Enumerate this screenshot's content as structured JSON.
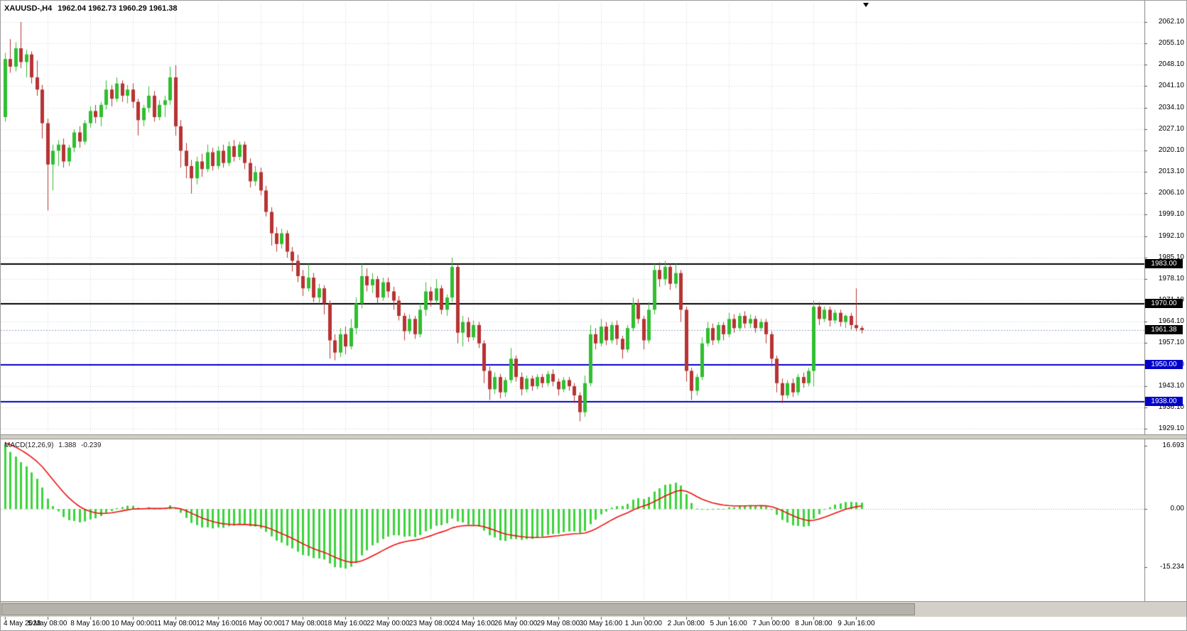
{
  "header": {
    "symbol_timeframe": "XAUUSD-,H4",
    "ohlc_readout": "1962.04 1962.73 1960.29 1961.38"
  },
  "macd_panel": {
    "name": "MACD(12,26,9)",
    "main_value": "1.388",
    "signal_value": "-0.239"
  },
  "colors": {
    "bull": "#2FBE2F",
    "bear": "#B73333",
    "histogram": "#3BD43B",
    "signal_line": "#EE1111",
    "grid": "#D6D6D6",
    "axis_line": "#808080",
    "level_black": "#000000",
    "level_blue": "#0000C8",
    "last_price_line": "#90A8C0"
  },
  "chart_data": {
    "type": "candlestick",
    "symbol": "XAUUSD-",
    "timeframe": "H4",
    "current_bar": {
      "open": 1962.04,
      "high": 1962.73,
      "low": 1960.29,
      "close": 1961.38
    },
    "last_price": 1961.38,
    "price_axis": {
      "top": 2062.1,
      "bottom": 1929.1,
      "step": 7.0,
      "tick_labels": [
        "2062.10",
        "2055.10",
        "2048.10",
        "2041.10",
        "2034.10",
        "2027.10",
        "2020.10",
        "2013.10",
        "2006.10",
        "1999.10",
        "1992.10",
        "1985.10",
        "1978.10",
        "1971.10",
        "1964.10",
        "1957.10",
        "1950.10",
        "1943.10",
        "1936.10",
        "1929.10"
      ]
    },
    "price_badges": [
      {
        "text": "1983.00",
        "bg": "#000000"
      },
      {
        "text": "1970.00",
        "bg": "#000000"
      },
      {
        "text": "1961.38",
        "bg": "#000000"
      },
      {
        "text": "1950.00",
        "bg": "#0000C8"
      },
      {
        "text": "1938.00",
        "bg": "#0000C8"
      }
    ],
    "horizontal_levels": [
      {
        "price": 1983.0,
        "color": "#000000",
        "width": 2
      },
      {
        "price": 1970.0,
        "color": "#000000",
        "width": 2
      },
      {
        "price": 1950.0,
        "color": "#0000C8",
        "width": 2
      },
      {
        "price": 1938.0,
        "color": "#0000C8",
        "width": 2
      }
    ],
    "candles": [
      [
        2031,
        2052,
        2029.5,
        2050
      ],
      [
        2050,
        2056.5,
        2045.5,
        2047.5
      ],
      [
        2047.5,
        2055.5,
        2046,
        2053.5
      ],
      [
        2053.5,
        2062.1,
        2047,
        2049
      ],
      [
        2049,
        2053,
        2044,
        2051.5
      ],
      [
        2051.5,
        2052.5,
        2042,
        2044
      ],
      [
        2044,
        2049.5,
        2038,
        2040
      ],
      [
        2040,
        2041.5,
        2024,
        2029
      ],
      [
        2029,
        2030.5,
        2000.5,
        2015.5
      ],
      [
        2015.5,
        2022,
        2007,
        2020
      ],
      [
        2020,
        2023.5,
        2015,
        2022
      ],
      [
        2022,
        2024,
        2014.5,
        2016.5
      ],
      [
        2016.5,
        2022,
        2015,
        2021
      ],
      [
        2021,
        2027,
        2019.5,
        2026
      ],
      [
        2026,
        2028,
        2021,
        2023
      ],
      [
        2023,
        2030,
        2022,
        2029
      ],
      [
        2029,
        2034.5,
        2027.5,
        2033
      ],
      [
        2033,
        2035,
        2029,
        2031
      ],
      [
        2031,
        2036,
        2028,
        2035
      ],
      [
        2035,
        2043,
        2033.5,
        2040
      ],
      [
        2040,
        2041.5,
        2034.5,
        2037
      ],
      [
        2037,
        2044,
        2036,
        2042
      ],
      [
        2042,
        2043,
        2036,
        2038
      ],
      [
        2038,
        2041.5,
        2035.5,
        2040
      ],
      [
        2040,
        2042,
        2034,
        2036
      ],
      [
        2036,
        2037,
        2025,
        2030
      ],
      [
        2030,
        2035,
        2028,
        2034
      ],
      [
        2034,
        2041,
        2032.5,
        2038
      ],
      [
        2038,
        2039.5,
        2029.5,
        2031
      ],
      [
        2031,
        2036.5,
        2030,
        2035
      ],
      [
        2035,
        2038,
        2031,
        2036.5
      ],
      [
        2036.5,
        2047.5,
        2035,
        2044
      ],
      [
        2044,
        2048,
        2025,
        2028
      ],
      [
        2028,
        2030,
        2014.5,
        2020
      ],
      [
        2020,
        2022.5,
        2011,
        2015
      ],
      [
        2015,
        2017,
        2006,
        2011
      ],
      [
        2011,
        2018,
        2009,
        2016.5
      ],
      [
        2016.5,
        2019,
        2011.5,
        2014
      ],
      [
        2014,
        2022,
        2013,
        2019.5
      ],
      [
        2019.5,
        2021,
        2013.5,
        2015
      ],
      [
        2015,
        2021.5,
        2014,
        2020
      ],
      [
        2020,
        2022,
        2014.5,
        2016
      ],
      [
        2016,
        2023,
        2015,
        2021.5
      ],
      [
        2021.5,
        2023.5,
        2016.5,
        2018
      ],
      [
        2018,
        2023,
        2017,
        2022
      ],
      [
        2022,
        2023,
        2014,
        2016
      ],
      [
        2016,
        2017.5,
        2008,
        2010
      ],
      [
        2010,
        2015,
        2008.5,
        2013
      ],
      [
        2013,
        2014.5,
        2005.5,
        2007
      ],
      [
        2007,
        2008.5,
        1998.5,
        2000
      ],
      [
        2000,
        2001.5,
        1989,
        1993
      ],
      [
        1993,
        1995,
        1987,
        1989.5
      ],
      [
        1989.5,
        1994.5,
        1988,
        1993
      ],
      [
        1993,
        1994,
        1985,
        1987
      ],
      [
        1987,
        1988.5,
        1980.5,
        1984
      ],
      [
        1984,
        1986,
        1977,
        1979
      ],
      [
        1979,
        1981,
        1972.5,
        1975
      ],
      [
        1975,
        1983,
        1974,
        1978.5
      ],
      [
        1978.5,
        1980,
        1970.5,
        1972
      ],
      [
        1972,
        1976.5,
        1970,
        1975
      ],
      [
        1975,
        1976,
        1966.5,
        1970
      ],
      [
        1970,
        1971,
        1952,
        1958
      ],
      [
        1958,
        1960,
        1951.5,
        1954
      ],
      [
        1954,
        1962,
        1952.5,
        1960
      ],
      [
        1960,
        1962.5,
        1953.5,
        1956
      ],
      [
        1956,
        1965,
        1955,
        1962
      ],
      [
        1962,
        1972,
        1960,
        1970
      ],
      [
        1970,
        1983,
        1968.5,
        1979
      ],
      [
        1979,
        1981.5,
        1974,
        1976
      ],
      [
        1976,
        1980,
        1973.5,
        1978
      ],
      [
        1978,
        1979,
        1970,
        1972
      ],
      [
        1972,
        1978.5,
        1971,
        1977
      ],
      [
        1977,
        1978.5,
        1972,
        1974
      ],
      [
        1974,
        1975.5,
        1968,
        1971
      ],
      [
        1971,
        1972.5,
        1964.5,
        1966
      ],
      [
        1966,
        1967,
        1958,
        1961
      ],
      [
        1961,
        1966.5,
        1960,
        1965
      ],
      [
        1965,
        1966,
        1958.5,
        1960
      ],
      [
        1960,
        1970,
        1959,
        1968
      ],
      [
        1968,
        1977,
        1966,
        1974
      ],
      [
        1974,
        1975.5,
        1969,
        1971
      ],
      [
        1971,
        1978,
        1970,
        1975
      ],
      [
        1975,
        1976,
        1966.5,
        1968
      ],
      [
        1968,
        1973,
        1966,
        1972
      ],
      [
        1972,
        1985,
        1970.5,
        1982
      ],
      [
        1982,
        1983,
        1957,
        1960.5
      ],
      [
        1960.5,
        1966,
        1956,
        1964
      ],
      [
        1964,
        1965.5,
        1957.5,
        1959
      ],
      [
        1959,
        1964.5,
        1958,
        1963
      ],
      [
        1963,
        1964,
        1955.5,
        1957
      ],
      [
        1957,
        1958,
        1944,
        1948
      ],
      [
        1948,
        1949.5,
        1938.5,
        1942
      ],
      [
        1942,
        1947.5,
        1940.5,
        1946
      ],
      [
        1946,
        1947,
        1939,
        1941
      ],
      [
        1941,
        1946,
        1939.5,
        1945
      ],
      [
        1945,
        1955.5,
        1944,
        1952
      ],
      [
        1952,
        1953,
        1944.5,
        1946
      ],
      [
        1946,
        1947.5,
        1940,
        1942
      ],
      [
        1942,
        1946.5,
        1941,
        1945.5
      ],
      [
        1945.5,
        1946.5,
        1941.5,
        1943
      ],
      [
        1943,
        1947,
        1942,
        1946
      ],
      [
        1946,
        1947,
        1942.5,
        1944
      ],
      [
        1944,
        1948,
        1943,
        1947
      ],
      [
        1947,
        1948.5,
        1943,
        1944.5
      ],
      [
        1944.5,
        1945.5,
        1940,
        1942
      ],
      [
        1942,
        1946,
        1941,
        1945
      ],
      [
        1945,
        1946,
        1941.5,
        1943
      ],
      [
        1943,
        1944,
        1937.5,
        1940
      ],
      [
        1940,
        1941,
        1931.5,
        1934.5
      ],
      [
        1934.5,
        1946.5,
        1933,
        1944
      ],
      [
        1944,
        1963,
        1943,
        1960
      ],
      [
        1960,
        1962,
        1955,
        1957
      ],
      [
        1957,
        1965,
        1956,
        1962.5
      ],
      [
        1962.5,
        1964,
        1956.5,
        1958
      ],
      [
        1958,
        1964,
        1957,
        1963
      ],
      [
        1963,
        1964.5,
        1956.5,
        1958.5
      ],
      [
        1958.5,
        1959.5,
        1952,
        1955
      ],
      [
        1955,
        1963,
        1954,
        1962
      ],
      [
        1962,
        1972,
        1961,
        1970
      ],
      [
        1970,
        1971.5,
        1963.5,
        1965
      ],
      [
        1965,
        1966,
        1955,
        1958
      ],
      [
        1958,
        1970.5,
        1957,
        1968
      ],
      [
        1968,
        1983,
        1966.5,
        1981
      ],
      [
        1981,
        1983.5,
        1975.5,
        1978
      ],
      [
        1978,
        1984,
        1976,
        1982
      ],
      [
        1982,
        1983,
        1974.5,
        1976.5
      ],
      [
        1976.5,
        1983,
        1975,
        1980
      ],
      [
        1980,
        1981,
        1964,
        1968
      ],
      [
        1968,
        1969,
        1944.5,
        1948
      ],
      [
        1948,
        1949,
        1938.5,
        1941.5
      ],
      [
        1941.5,
        1947,
        1940,
        1946
      ],
      [
        1946,
        1959,
        1945,
        1957
      ],
      [
        1957,
        1964,
        1956,
        1962
      ],
      [
        1962,
        1963.5,
        1956.5,
        1958
      ],
      [
        1958,
        1964,
        1957,
        1963
      ],
      [
        1963,
        1964,
        1958,
        1960
      ],
      [
        1960,
        1967,
        1959,
        1965
      ],
      [
        1965,
        1966.5,
        1960.5,
        1962
      ],
      [
        1962,
        1967,
        1961,
        1966
      ],
      [
        1966,
        1967.5,
        1962,
        1963.5
      ],
      [
        1963.5,
        1966.5,
        1962,
        1965
      ],
      [
        1965,
        1966,
        1960.5,
        1962
      ],
      [
        1962,
        1965,
        1961,
        1964
      ],
      [
        1964,
        1965,
        1957,
        1960
      ],
      [
        1960,
        1961,
        1949.5,
        1952
      ],
      [
        1952,
        1953,
        1941,
        1944
      ],
      [
        1944,
        1945.5,
        1937.5,
        1940
      ],
      [
        1940,
        1945,
        1939,
        1944
      ],
      [
        1944,
        1945.5,
        1939.5,
        1941
      ],
      [
        1941,
        1947,
        1940,
        1946
      ],
      [
        1946,
        1947.5,
        1942.5,
        1944
      ],
      [
        1944,
        1949,
        1943,
        1948
      ],
      [
        1948,
        1971,
        1943,
        1969
      ],
      [
        1969,
        1970.5,
        1963,
        1965
      ],
      [
        1965,
        1969,
        1964,
        1968
      ],
      [
        1968,
        1969,
        1962.5,
        1964.5
      ],
      [
        1964.5,
        1968,
        1963.5,
        1967
      ],
      [
        1967,
        1968,
        1962.5,
        1964
      ],
      [
        1964,
        1966.5,
        1962,
        1966
      ],
      [
        1966,
        1967,
        1961.5,
        1963
      ],
      [
        1963,
        1975,
        1961,
        1962
      ],
      [
        1962.04,
        1962.73,
        1960.29,
        1961.38
      ]
    ],
    "macd": {
      "fast": 12,
      "slow": 26,
      "signal": 9,
      "current_main": 1.388,
      "current_signal": -0.239,
      "tick_labels": [
        "16.693",
        "0.00",
        "-15.234"
      ]
    },
    "time_tick_step_bars": 8,
    "time_tick_labels": [
      "4 May 2023",
      "5 May 08:00",
      "8 May 16:00",
      "10 May 00:00",
      "11 May 08:00",
      "12 May 16:00",
      "16 May 00:00",
      "17 May 08:00",
      "18 May 16:00",
      "22 May 00:00",
      "23 May 08:00",
      "24 May 16:00",
      "26 May 00:00",
      "29 May 08:00",
      "30 May 16:00",
      "1 Jun 00:00",
      "2 Jun 08:00",
      "5 Jun 16:00",
      "7 Jun 00:00",
      "8 Jun 08:00",
      "9 Jun 16:00"
    ]
  }
}
